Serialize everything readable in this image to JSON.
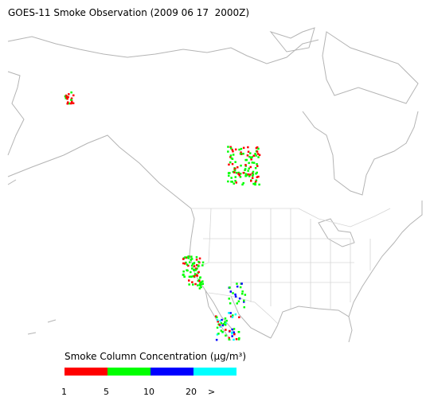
{
  "title": "GOES-11 Smoke Observation (2009 06 17  2000Z)",
  "legend": {
    "title": "Smoke Column Concentration (μg/m³)",
    "segments": [
      {
        "color": "#ff0000"
      },
      {
        "color": "#00ff00"
      },
      {
        "color": "#0000ff"
      },
      {
        "color": "#00ffff"
      }
    ],
    "labels": [
      "1",
      "5",
      "10",
      "20",
      ">"
    ]
  }
}
